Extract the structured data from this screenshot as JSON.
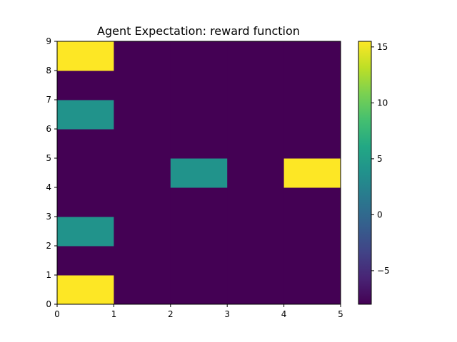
{
  "chart_data": {
    "type": "heatmap",
    "title": "Agent Expectation: reward function",
    "xlabel": "",
    "ylabel": "",
    "x_edges": [
      0,
      1,
      2,
      3,
      4,
      5
    ],
    "y_edges": [
      0,
      1,
      2,
      3,
      4,
      5,
      6,
      7,
      8,
      9
    ],
    "xlim": [
      0,
      5
    ],
    "ylim": [
      0,
      9
    ],
    "x_ticks": [
      "0",
      "1",
      "2",
      "3",
      "4",
      "5"
    ],
    "y_ticks": [
      "0",
      "1",
      "2",
      "3",
      "4",
      "5",
      "6",
      "7",
      "8",
      "9"
    ],
    "colormap": "viridis",
    "vmin": -8,
    "vmax": 15.5,
    "colorbar_ticks": [
      "15",
      "10",
      "5",
      "0",
      "−5"
    ],
    "colorbar_tick_values": [
      15,
      10,
      5,
      0,
      -5
    ],
    "values_by_row_bottom_to_top": [
      [
        15.5,
        -8,
        -8,
        -8,
        -8
      ],
      [
        -8,
        -8,
        -8,
        -8,
        -8
      ],
      [
        4,
        -8,
        -8,
        -8,
        -8
      ],
      [
        -8,
        -8,
        -8,
        -8,
        -8
      ],
      [
        -8,
        -8,
        4,
        -8,
        15.5
      ],
      [
        -8,
        -8,
        -8,
        -8,
        -8
      ],
      [
        4,
        -8,
        -8,
        -8,
        -8
      ],
      [
        -8,
        -8,
        -8,
        -8,
        -8
      ],
      [
        15.5,
        -8,
        -8,
        -8,
        -8
      ]
    ],
    "grid": false,
    "legend": "colorbar-right"
  }
}
